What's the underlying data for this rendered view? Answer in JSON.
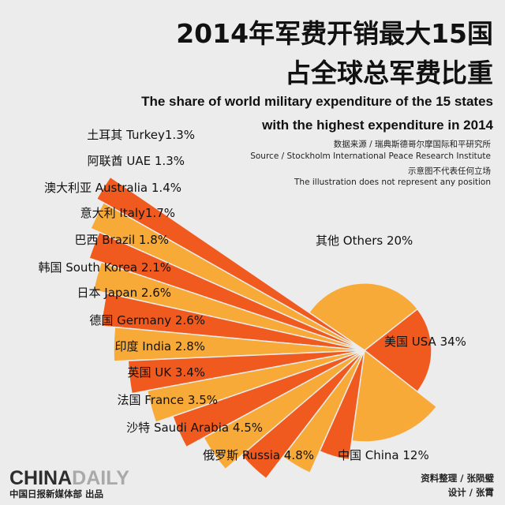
{
  "header": {
    "title_line1": "2014年军费开销最大15国",
    "title_line2": "占全球总军费比重",
    "subtitle_en_line1": "The share of world military expenditure of the 15 states",
    "subtitle_en_line2": "with the highest expenditure in 2014",
    "source_cn": "数据来源 / 瑞典斯德哥尔摩国际和平研究所",
    "source_en": "Source / Stockholm International Peace Research Institute",
    "disclaimer_cn": "示意图不代表任何立场",
    "disclaimer_en": "The illustration does not represent any position"
  },
  "footer": {
    "logo_part1": "CHINA",
    "logo_part2": "DAILY",
    "publisher": "中国日报新媒体部 出品",
    "credit1": "资料整理 / 张陨璧",
    "credit2": "设计 / 张霄"
  },
  "colors": {
    "dark_orange": "#f05a1e",
    "light_orange": "#f8aa38",
    "background": "#ececec"
  },
  "chart_data": {
    "type": "pie",
    "unit": "%",
    "slices": [
      {
        "label": "美国 USA 34%",
        "value": 34,
        "color": "#f05a1e"
      },
      {
        "label": "中国 China 12%",
        "value": 12,
        "color": "#f8aa38"
      },
      {
        "label": "俄罗斯 Russia 4.8%",
        "value": 4.8,
        "color": "#f05a1e"
      },
      {
        "label": "沙特 Saudi Arabia 4.5%",
        "value": 4.5,
        "color": "#f8aa38"
      },
      {
        "label": "法国 France 3.5%",
        "value": 3.5,
        "color": "#f05a1e"
      },
      {
        "label": "英国 UK 3.4%",
        "value": 3.4,
        "color": "#f8aa38"
      },
      {
        "label": "印度 India 2.8%",
        "value": 2.8,
        "color": "#f05a1e"
      },
      {
        "label": "德国 Germany 2.6%",
        "value": 2.6,
        "color": "#f8aa38"
      },
      {
        "label": "日本 Japan 2.6%",
        "value": 2.6,
        "color": "#f05a1e"
      },
      {
        "label": "韩国 South Korea 2.1%",
        "value": 2.1,
        "color": "#f8aa38"
      },
      {
        "label": "巴西 Brazil 1.8%",
        "value": 1.8,
        "color": "#f05a1e"
      },
      {
        "label": "意大利 Italy1.7%",
        "value": 1.7,
        "color": "#f8aa38"
      },
      {
        "label": "澳大利亚 Australia 1.4%",
        "value": 1.4,
        "color": "#f05a1e"
      },
      {
        "label": "阿联酋 UAE 1.3%",
        "value": 1.3,
        "color": "#f8aa38"
      },
      {
        "label": "土耳其 Turkey1.3%",
        "value": 1.3,
        "color": "#f05a1e"
      },
      {
        "label": "其他 Others 20%",
        "value": 20,
        "color": "#f8aa38"
      }
    ]
  }
}
